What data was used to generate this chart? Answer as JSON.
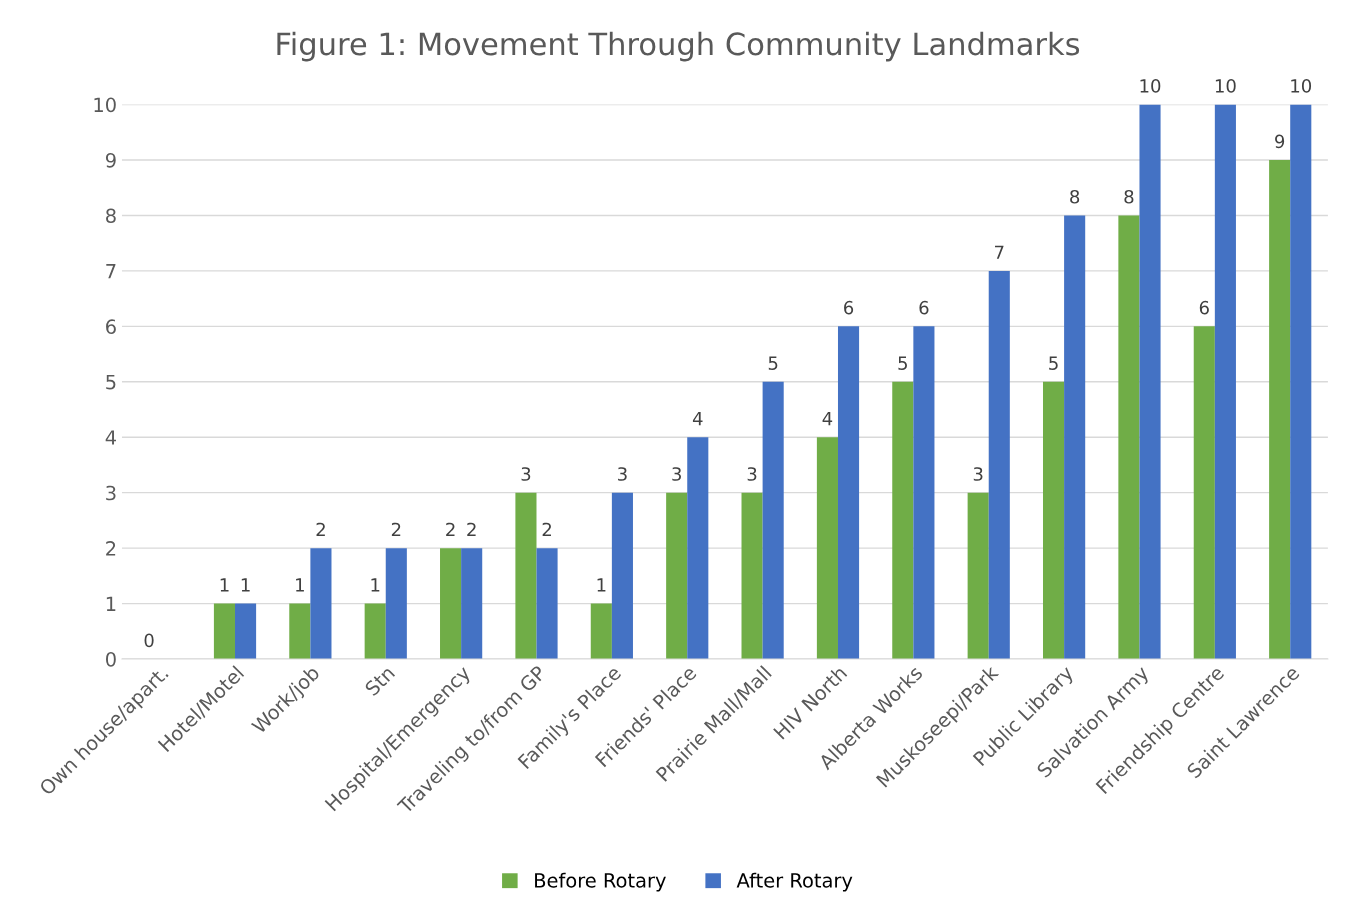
{
  "chart_data": {
    "type": "bar",
    "title": "Figure 1: Movement Through Community Landmarks",
    "categories": [
      "Own house/apart.",
      "Hotel/Motel",
      "Work/job",
      "Stn",
      "Hospital/Emergency",
      "Traveling to/from GP",
      "Family's Place",
      "Friends' Place",
      "Prairie Mall/Mall",
      "HIV North",
      "Alberta Works",
      "Muskoseepi/Park",
      "Public Library",
      "Salvation Army",
      "Friendship Centre",
      "Saint Lawrence"
    ],
    "series": [
      {
        "name": "Before Rotary",
        "color": "#70ad47",
        "values": [
          0,
          1,
          1,
          1,
          2,
          3,
          1,
          3,
          3,
          4,
          5,
          3,
          5,
          8,
          6,
          9
        ]
      },
      {
        "name": "After Rotary",
        "color": "#4472c4",
        "values": [
          null,
          1,
          2,
          2,
          2,
          2,
          3,
          4,
          5,
          6,
          6,
          7,
          8,
          10,
          10,
          10
        ]
      }
    ],
    "ylim": [
      0,
      10
    ],
    "yticks": [
      0,
      1,
      2,
      3,
      4,
      5,
      6,
      7,
      8,
      9,
      10
    ],
    "grid": "y",
    "legend": "bottom",
    "data_labels": true
  }
}
